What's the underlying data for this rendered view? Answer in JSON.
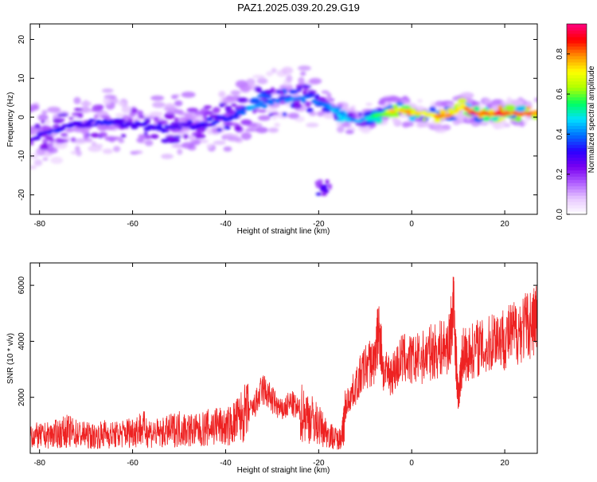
{
  "title": "PAZ1.2025.039.20.29.G19",
  "chart_data": [
    {
      "type": "heatmap",
      "xlabel": "Height of straight line (km)",
      "ylabel": "Frequency (Hz)",
      "xlim": [
        -82,
        27
      ],
      "ylim": [
        -25,
        24
      ],
      "xticks": [
        -80,
        -60,
        -40,
        -20,
        0,
        20
      ],
      "yticks": [
        -20,
        -10,
        0,
        10,
        20
      ],
      "xtick_labels": [
        "-80",
        "-60",
        "-40",
        "-20",
        "0",
        "20"
      ],
      "ytick_labels": [
        "-20",
        "-10",
        "0",
        "10",
        "20"
      ],
      "colorbar": {
        "label": "Normalized spectral amplitude",
        "range": [
          0,
          0.95
        ],
        "ticks": [
          0.0,
          0.2,
          0.4,
          0.6,
          0.8
        ],
        "tick_labels": [
          "0.0",
          "0.2",
          "0.4",
          "0.6",
          "0.8"
        ],
        "colormap": [
          "#ffffff",
          "#e8c8ff",
          "#b060ff",
          "#7a00f0",
          "#2a00ff",
          "#0070ff",
          "#00e0ff",
          "#00ff60",
          "#b0ff00",
          "#ffff00",
          "#ff9000",
          "#ff0000",
          "#ff0080"
        ]
      },
      "ridge": {
        "x": [
          -81,
          -76,
          -72,
          -66,
          -60,
          -54,
          -48,
          -42,
          -38,
          -34,
          -30,
          -26,
          -22,
          -18,
          -15,
          -12,
          -9,
          -6,
          -3,
          0,
          3,
          6,
          9,
          11,
          13,
          16,
          19,
          22,
          25,
          27
        ],
        "y": [
          -5,
          -3,
          -2,
          -1,
          -2,
          -3,
          -2,
          -1,
          0,
          3,
          4,
          5,
          5,
          3,
          0,
          -1,
          0,
          1,
          2,
          1,
          1,
          0,
          1,
          3,
          1,
          1,
          1,
          1,
          1,
          1
        ],
        "amplitude": [
          0.3,
          0.35,
          0.3,
          0.35,
          0.3,
          0.35,
          0.3,
          0.35,
          0.35,
          0.45,
          0.4,
          0.45,
          0.4,
          0.45,
          0.55,
          0.45,
          0.5,
          0.7,
          0.8,
          0.8,
          0.75,
          0.85,
          0.8,
          0.75,
          0.9,
          0.85,
          0.9,
          0.85,
          0.9,
          0.9
        ]
      }
    },
    {
      "type": "line",
      "xlabel": "Height of straight line (km)",
      "ylabel": "SNR (10 * v/v)",
      "xlim": [
        -82,
        27
      ],
      "ylim": [
        0,
        6800
      ],
      "xticks": [
        -80,
        -60,
        -40,
        -20,
        0,
        20
      ],
      "yticks": [
        2000,
        4000,
        6000
      ],
      "xtick_labels": [
        "-80",
        "-60",
        "-40",
        "-20",
        "0",
        "20"
      ],
      "ytick_labels": [
        "2000",
        "4000",
        "6000"
      ],
      "color": "#ee2222",
      "x": [
        -82,
        -80,
        -78,
        -76,
        -74,
        -72,
        -70,
        -68,
        -66,
        -64,
        -62,
        -60,
        -58,
        -56,
        -54,
        -52,
        -50,
        -48,
        -46,
        -44,
        -42,
        -40,
        -38,
        -36,
        -34,
        -32,
        -30,
        -28,
        -26,
        -24,
        -22,
        -20,
        -18,
        -16,
        -15,
        -14,
        -12,
        -10,
        -8,
        -7,
        -6,
        -4,
        -2,
        0,
        2,
        4,
        6,
        8,
        9,
        10,
        11,
        12,
        14,
        16,
        18,
        20,
        22,
        24,
        26,
        27
      ],
      "y": [
        700,
        600,
        650,
        700,
        800,
        700,
        650,
        600,
        700,
        650,
        700,
        800,
        900,
        750,
        700,
        800,
        900,
        850,
        800,
        900,
        1000,
        900,
        1100,
        1400,
        1600,
        2300,
        1900,
        1500,
        1800,
        1500,
        1300,
        1000,
        700,
        500,
        600,
        1800,
        2400,
        3100,
        3300,
        4500,
        2800,
        2900,
        3400,
        3300,
        3400,
        3600,
        3700,
        3900,
        5200,
        1900,
        3600,
        3500,
        3800,
        3700,
        4200,
        4100,
        4300,
        4500,
        4700,
        4800
      ]
    }
  ]
}
